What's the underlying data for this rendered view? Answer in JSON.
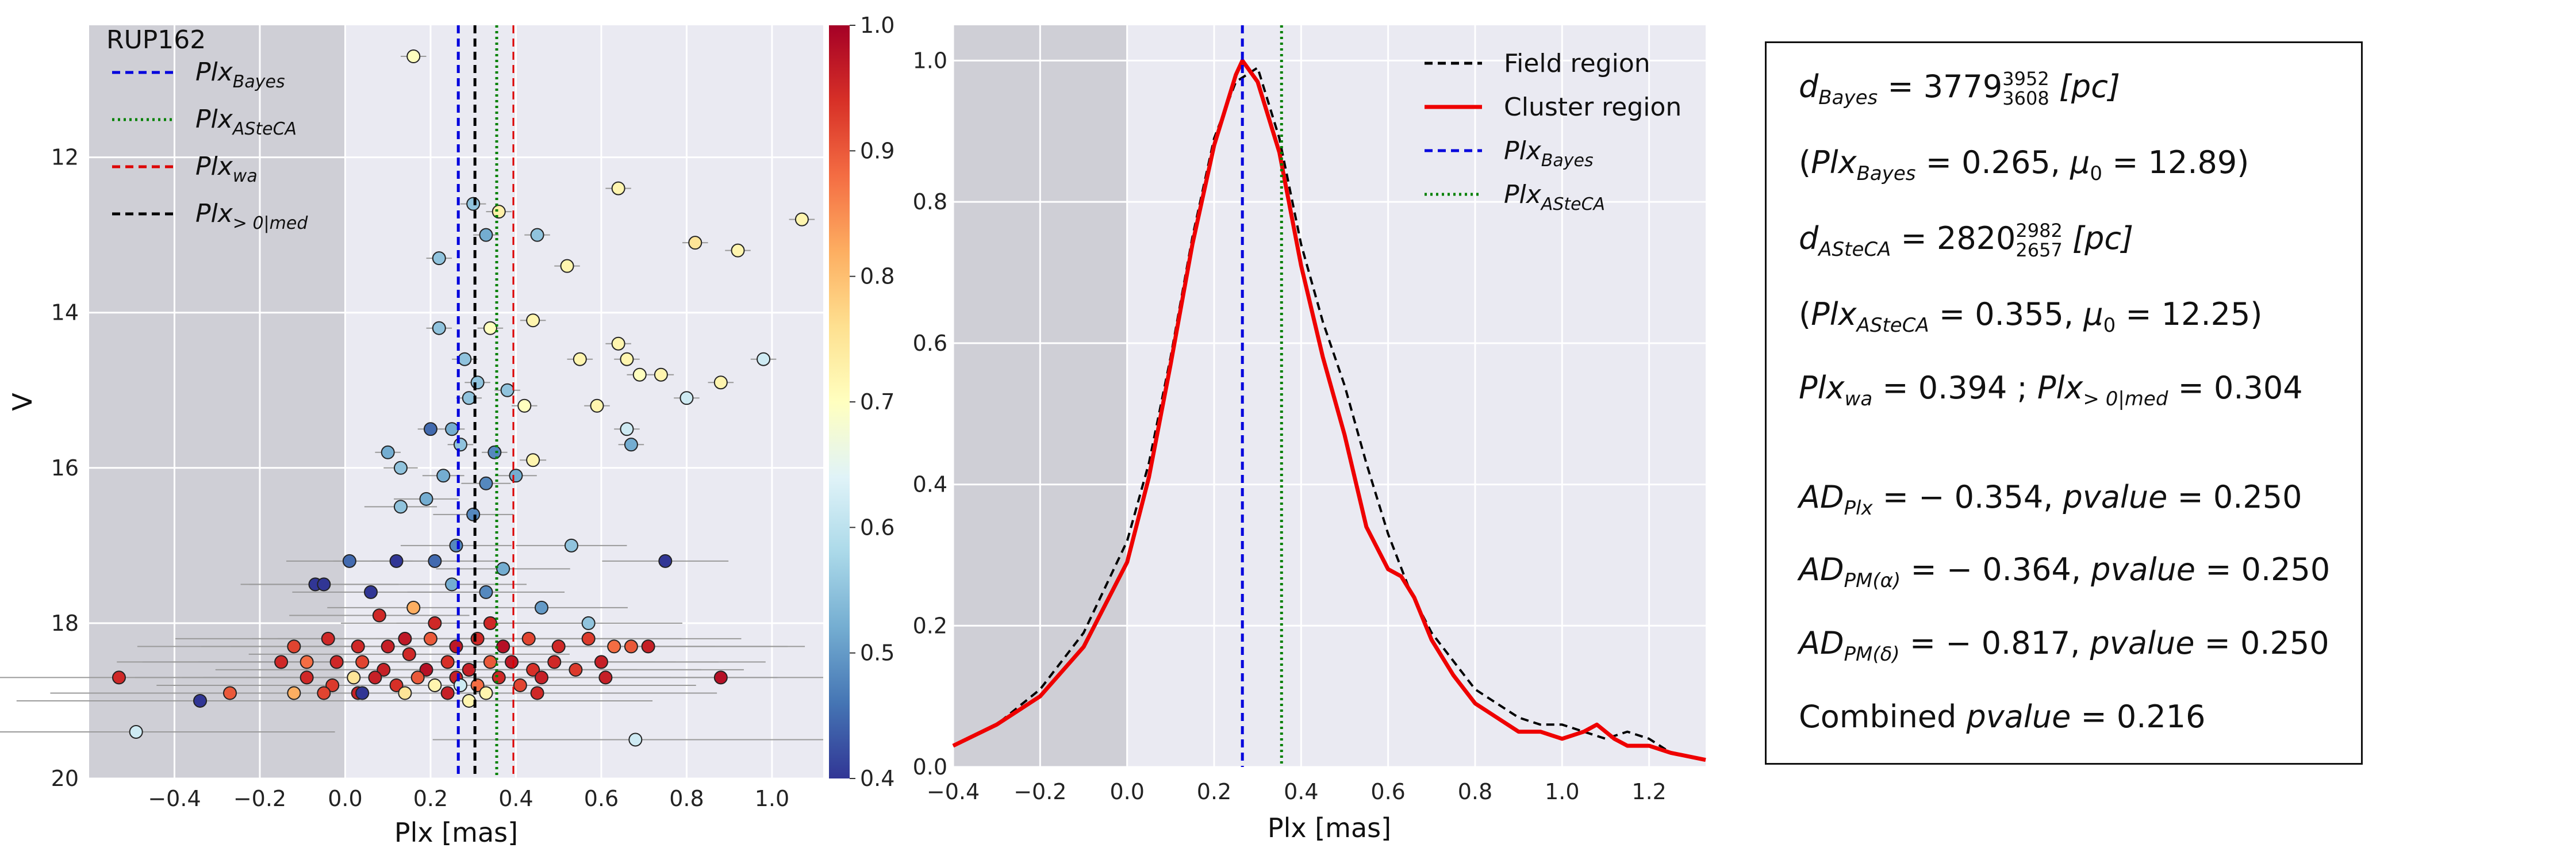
{
  "chart_data": [
    {
      "type": "scatter",
      "panel": "left",
      "title": "RUP162",
      "xlabel": "Plx [mas]",
      "ylabel": "V",
      "xlim": [
        -0.6,
        1.12
      ],
      "ylim": [
        20,
        10.3
      ],
      "y_inverted": true,
      "xticks": [
        "−0.4",
        "−0.2",
        "0.0",
        "0.2",
        "0.4",
        "0.6",
        "0.8",
        "1.0"
      ],
      "yticks": [
        "12",
        "14",
        "16",
        "18",
        "20"
      ],
      "grid": true,
      "shaded_region": [
        -0.6,
        0.0
      ],
      "colorbar": {
        "range": [
          0.4,
          1.0
        ],
        "ticks": [
          "0.4",
          "0.5",
          "0.6",
          "0.7",
          "0.8",
          "0.9",
          "1.0"
        ],
        "colormap": "RdYlBu_r"
      },
      "vlines": [
        {
          "name": "Plx",
          "sub": "Bayes",
          "x": 0.265,
          "color": "#0000dd",
          "style": "dashed"
        },
        {
          "name": "Plx",
          "sub": "ASteCA",
          "x": 0.355,
          "color": "#008000",
          "style": "dotted"
        },
        {
          "name": "Plx",
          "sub": "wa",
          "x": 0.394,
          "color": "#dd0000",
          "style": "dashed"
        },
        {
          "name": "Plx",
          "sub": "> 0|med",
          "x": 0.304,
          "color": "#000000",
          "style": "dashed"
        }
      ],
      "points": [
        [
          0.16,
          10.7,
          0.7
        ],
        [
          1.07,
          12.8,
          0.72
        ],
        [
          0.64,
          12.4,
          0.72
        ],
        [
          0.82,
          13.1,
          0.75
        ],
        [
          0.92,
          13.2,
          0.72
        ],
        [
          0.52,
          13.4,
          0.72
        ],
        [
          0.22,
          13.3,
          0.55
        ],
        [
          0.3,
          12.6,
          0.55
        ],
        [
          0.36,
          12.7,
          0.73
        ],
        [
          0.33,
          13.0,
          0.52
        ],
        [
          0.45,
          13.0,
          0.55
        ],
        [
          0.44,
          14.1,
          0.72
        ],
        [
          0.34,
          14.2,
          0.7
        ],
        [
          0.64,
          14.4,
          0.72
        ],
        [
          0.55,
          14.6,
          0.72
        ],
        [
          0.66,
          14.6,
          0.72
        ],
        [
          0.69,
          14.8,
          0.7
        ],
        [
          0.74,
          14.8,
          0.72
        ],
        [
          0.88,
          14.9,
          0.72
        ],
        [
          0.98,
          14.6,
          0.62
        ],
        [
          0.22,
          14.2,
          0.55
        ],
        [
          0.28,
          14.6,
          0.55
        ],
        [
          0.31,
          14.9,
          0.55
        ],
        [
          0.38,
          15.0,
          0.55
        ],
        [
          0.29,
          15.1,
          0.55
        ],
        [
          0.42,
          15.2,
          0.7
        ],
        [
          0.59,
          15.2,
          0.72
        ],
        [
          0.8,
          15.1,
          0.62
        ],
        [
          0.66,
          15.5,
          0.62
        ],
        [
          0.2,
          15.5,
          0.45
        ],
        [
          0.25,
          15.5,
          0.52
        ],
        [
          0.27,
          15.7,
          0.55
        ],
        [
          0.35,
          15.8,
          0.48
        ],
        [
          0.44,
          15.9,
          0.72
        ],
        [
          0.67,
          15.7,
          0.52
        ],
        [
          0.1,
          15.8,
          0.52
        ],
        [
          0.13,
          16.0,
          0.55
        ],
        [
          0.23,
          16.1,
          0.52
        ],
        [
          0.33,
          16.2,
          0.48
        ],
        [
          0.4,
          16.1,
          0.52
        ],
        [
          0.19,
          16.4,
          0.52
        ],
        [
          0.3,
          16.6,
          0.48
        ],
        [
          0.13,
          16.5,
          0.55
        ],
        [
          0.21,
          17.2,
          0.45
        ],
        [
          0.01,
          17.2,
          0.45
        ],
        [
          0.12,
          17.2,
          0.4
        ],
        [
          0.26,
          17.0,
          0.48
        ],
        [
          0.53,
          17.0,
          0.55
        ],
        [
          0.37,
          17.3,
          0.52
        ],
        [
          0.75,
          17.2,
          0.4
        ],
        [
          -0.07,
          17.5,
          0.4
        ],
        [
          -0.05,
          17.5,
          0.4
        ],
        [
          0.06,
          17.6,
          0.4
        ],
        [
          0.16,
          17.8,
          0.82
        ],
        [
          0.25,
          17.5,
          0.52
        ],
        [
          0.33,
          17.6,
          0.48
        ],
        [
          0.46,
          17.8,
          0.5
        ],
        [
          0.57,
          18.0,
          0.55
        ],
        [
          0.08,
          17.9,
          0.95
        ],
        [
          0.21,
          18.0,
          0.95
        ],
        [
          0.34,
          18.0,
          0.95
        ],
        [
          -0.12,
          18.3,
          0.92
        ],
        [
          -0.04,
          18.2,
          0.95
        ],
        [
          0.03,
          18.3,
          0.95
        ],
        [
          0.1,
          18.3,
          0.96
        ],
        [
          0.14,
          18.2,
          0.97
        ],
        [
          0.2,
          18.2,
          0.9
        ],
        [
          0.26,
          18.3,
          0.97
        ],
        [
          0.31,
          18.2,
          0.95
        ],
        [
          0.37,
          18.3,
          0.98
        ],
        [
          0.43,
          18.2,
          0.92
        ],
        [
          0.5,
          18.3,
          0.95
        ],
        [
          0.57,
          18.2,
          0.93
        ],
        [
          0.63,
          18.3,
          0.88
        ],
        [
          0.67,
          18.3,
          0.9
        ],
        [
          0.71,
          18.3,
          0.96
        ],
        [
          -0.15,
          18.5,
          0.95
        ],
        [
          -0.09,
          18.5,
          0.88
        ],
        [
          -0.02,
          18.5,
          0.95
        ],
        [
          0.04,
          18.5,
          0.92
        ],
        [
          0.09,
          18.6,
          0.96
        ],
        [
          0.15,
          18.4,
          0.95
        ],
        [
          0.19,
          18.6,
          0.98
        ],
        [
          0.24,
          18.5,
          0.94
        ],
        [
          0.29,
          18.6,
          0.96
        ],
        [
          0.34,
          18.5,
          0.9
        ],
        [
          0.39,
          18.5,
          0.97
        ],
        [
          0.44,
          18.6,
          0.94
        ],
        [
          0.49,
          18.5,
          0.95
        ],
        [
          0.54,
          18.6,
          0.93
        ],
        [
          0.6,
          18.5,
          0.96
        ],
        [
          -0.09,
          18.7,
          0.95
        ],
        [
          -0.03,
          18.8,
          0.93
        ],
        [
          0.02,
          18.7,
          0.75
        ],
        [
          0.07,
          18.7,
          0.96
        ],
        [
          0.12,
          18.8,
          0.94
        ],
        [
          0.17,
          18.7,
          0.9
        ],
        [
          0.21,
          18.8,
          0.72
        ],
        [
          0.26,
          18.7,
          0.96
        ],
        [
          0.31,
          18.8,
          0.88
        ],
        [
          0.36,
          18.7,
          0.95
        ],
        [
          0.41,
          18.8,
          0.92
        ],
        [
          0.46,
          18.7,
          0.96
        ],
        [
          -0.12,
          18.9,
          0.82
        ],
        [
          -0.05,
          18.9,
          0.92
        ],
        [
          0.03,
          18.9,
          0.96
        ],
        [
          0.14,
          18.9,
          0.75
        ],
        [
          0.24,
          18.9,
          0.96
        ],
        [
          0.33,
          18.9,
          0.72
        ],
        [
          0.45,
          18.9,
          0.95
        ],
        [
          -0.34,
          19.0,
          0.4
        ],
        [
          -0.27,
          18.9,
          0.9
        ],
        [
          0.04,
          18.9,
          0.4
        ],
        [
          0.29,
          19.0,
          0.72
        ],
        [
          0.61,
          18.7,
          0.96
        ],
        [
          0.88,
          18.7,
          0.98
        ],
        [
          -0.53,
          18.7,
          0.95
        ],
        [
          -0.49,
          19.4,
          0.62
        ],
        [
          0.68,
          19.5,
          0.62
        ],
        [
          0.27,
          18.8,
          0.62
        ]
      ]
    },
    {
      "type": "line",
      "panel": "middle",
      "xlabel": "Plx [mas]",
      "ylabel": "",
      "xlim": [
        -0.4,
        1.33
      ],
      "ylim": [
        0,
        1.05
      ],
      "xticks": [
        "−0.4",
        "−0.2",
        "0.0",
        "0.2",
        "0.4",
        "0.6",
        "0.8",
        "1.0",
        "1.2"
      ],
      "yticks": [
        "0.0",
        "0.2",
        "0.4",
        "0.6",
        "0.8",
        "1.0"
      ],
      "grid": true,
      "shaded_region": [
        -0.4,
        0.0
      ],
      "legend_position": "top-right",
      "series": [
        {
          "name": "Field region",
          "color": "#000000",
          "style": "dashed",
          "x": [
            -0.4,
            -0.3,
            -0.2,
            -0.1,
            0.0,
            0.05,
            0.1,
            0.15,
            0.2,
            0.25,
            0.3,
            0.35,
            0.4,
            0.45,
            0.5,
            0.55,
            0.6,
            0.65,
            0.7,
            0.8,
            0.9,
            0.95,
            1.0,
            1.05,
            1.1,
            1.15,
            1.2,
            1.25,
            1.33
          ],
          "y": [
            0.03,
            0.06,
            0.11,
            0.19,
            0.32,
            0.43,
            0.58,
            0.75,
            0.89,
            0.97,
            0.99,
            0.89,
            0.74,
            0.63,
            0.54,
            0.43,
            0.33,
            0.25,
            0.19,
            0.11,
            0.07,
            0.06,
            0.06,
            0.05,
            0.04,
            0.05,
            0.04,
            0.02,
            0.01
          ]
        },
        {
          "name": "Cluster region",
          "color": "#ee0000",
          "style": "solid",
          "x": [
            -0.4,
            -0.3,
            -0.2,
            -0.1,
            0.0,
            0.05,
            0.1,
            0.15,
            0.2,
            0.25,
            0.265,
            0.3,
            0.35,
            0.4,
            0.45,
            0.5,
            0.55,
            0.6,
            0.63,
            0.66,
            0.7,
            0.75,
            0.8,
            0.85,
            0.9,
            0.95,
            1.0,
            1.05,
            1.08,
            1.12,
            1.15,
            1.2,
            1.25,
            1.33
          ],
          "y": [
            0.03,
            0.06,
            0.1,
            0.17,
            0.29,
            0.41,
            0.57,
            0.74,
            0.88,
            0.98,
            1.0,
            0.97,
            0.87,
            0.71,
            0.58,
            0.47,
            0.34,
            0.28,
            0.27,
            0.24,
            0.18,
            0.13,
            0.09,
            0.07,
            0.05,
            0.05,
            0.04,
            0.05,
            0.06,
            0.04,
            0.03,
            0.03,
            0.02,
            0.01
          ]
        }
      ],
      "vlines": [
        {
          "name": "Plx",
          "sub": "Bayes",
          "x": 0.265,
          "color": "#0000dd",
          "style": "dashed"
        },
        {
          "name": "Plx",
          "sub": "ASteCA",
          "x": 0.355,
          "color": "#008000",
          "style": "dotted"
        }
      ]
    }
  ],
  "info": {
    "d_bayes": {
      "label": "d",
      "sub": "Bayes",
      "value": "3779",
      "sup": "3952",
      "low": "3608",
      "unit": "[pc]"
    },
    "plx_bayes": {
      "label": "Plx",
      "sub": "Bayes",
      "value": "0.265",
      "mu_label": "μ",
      "mu_sub": "0",
      "mu_value": "12.89"
    },
    "d_asteca": {
      "label": "d",
      "sub": "ASteCA",
      "value": "2820",
      "sup": "2982",
      "low": "2657",
      "unit": "[pc]"
    },
    "plx_asteca": {
      "label": "Plx",
      "sub": "ASteCA",
      "value": "0.355",
      "mu_label": "μ",
      "mu_sub": "0",
      "mu_value": "12.25"
    },
    "plx_wa": {
      "label": "Plx",
      "sub": "wa",
      "value": "0.394",
      "sep": " ; ",
      "label2": "Plx",
      "sub2": "> 0|med",
      "value2": "0.304"
    },
    "ad_plx": {
      "label": "AD",
      "sub": "Plx",
      "value": "− 0.354",
      "pvalue_label": "pvalue",
      "pvalue": "0.250"
    },
    "ad_pma": {
      "label": "AD",
      "sub": "PM(α)",
      "value": "− 0.364",
      "pvalue_label": "pvalue",
      "pvalue": "0.250"
    },
    "ad_pmd": {
      "label": "AD",
      "sub": "PM(δ)",
      "value": "− 0.817",
      "pvalue_label": "pvalue",
      "pvalue": "0.250"
    },
    "combined": {
      "label": "Combined",
      "pvalue_label": "pvalue",
      "pvalue": "0.216"
    }
  },
  "colors": {
    "panel_bg": "#eaeaf2",
    "shade": "#cfcfd6",
    "grid": "#ffffff",
    "errorbar": "#9a9a9a"
  }
}
